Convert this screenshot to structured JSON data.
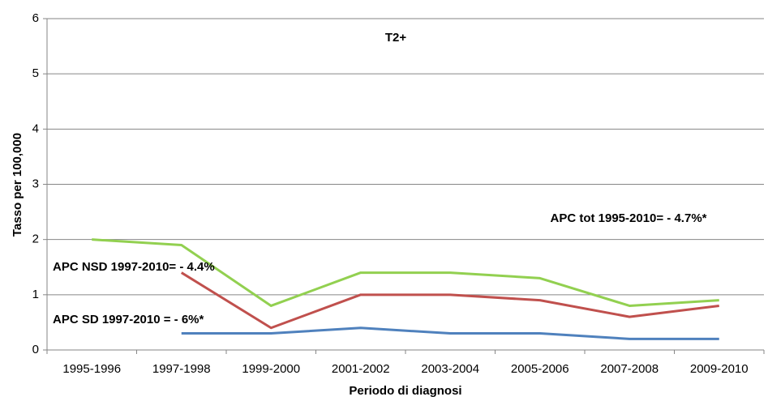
{
  "chart_data": {
    "type": "line",
    "xlabel": "Periodo di diagnosi",
    "ylabel": "Tasso per 100,000",
    "categories": [
      "1995-1996",
      "1997-1998",
      "1999-2000",
      "2001-2002",
      "2003-2004",
      "2005-2006",
      "2007-2008",
      "2009-2010"
    ],
    "series": [
      {
        "color": "#92d050",
        "values": [
          2.0,
          1.9,
          0.8,
          1.4,
          1.4,
          1.3,
          0.8,
          0.9
        ]
      },
      {
        "color": "#c0504d",
        "values": [
          null,
          1.4,
          0.4,
          1.0,
          1.0,
          0.9,
          0.6,
          0.8
        ]
      },
      {
        "color": "#4f81bd",
        "values": [
          null,
          0.3,
          0.3,
          0.4,
          0.3,
          0.3,
          0.2,
          0.2
        ]
      }
    ],
    "annotations": [
      "T2+",
      "APC tot 1995-2010= - 4.7%*",
      "APC NSD 1997-2010= - 4.4%",
      "APC SD 1997-2010 = - 6%*"
    ],
    "ylim": [
      0,
      6
    ],
    "yticks": [
      0,
      1,
      2,
      3,
      4,
      5,
      6
    ],
    "grid": true
  }
}
